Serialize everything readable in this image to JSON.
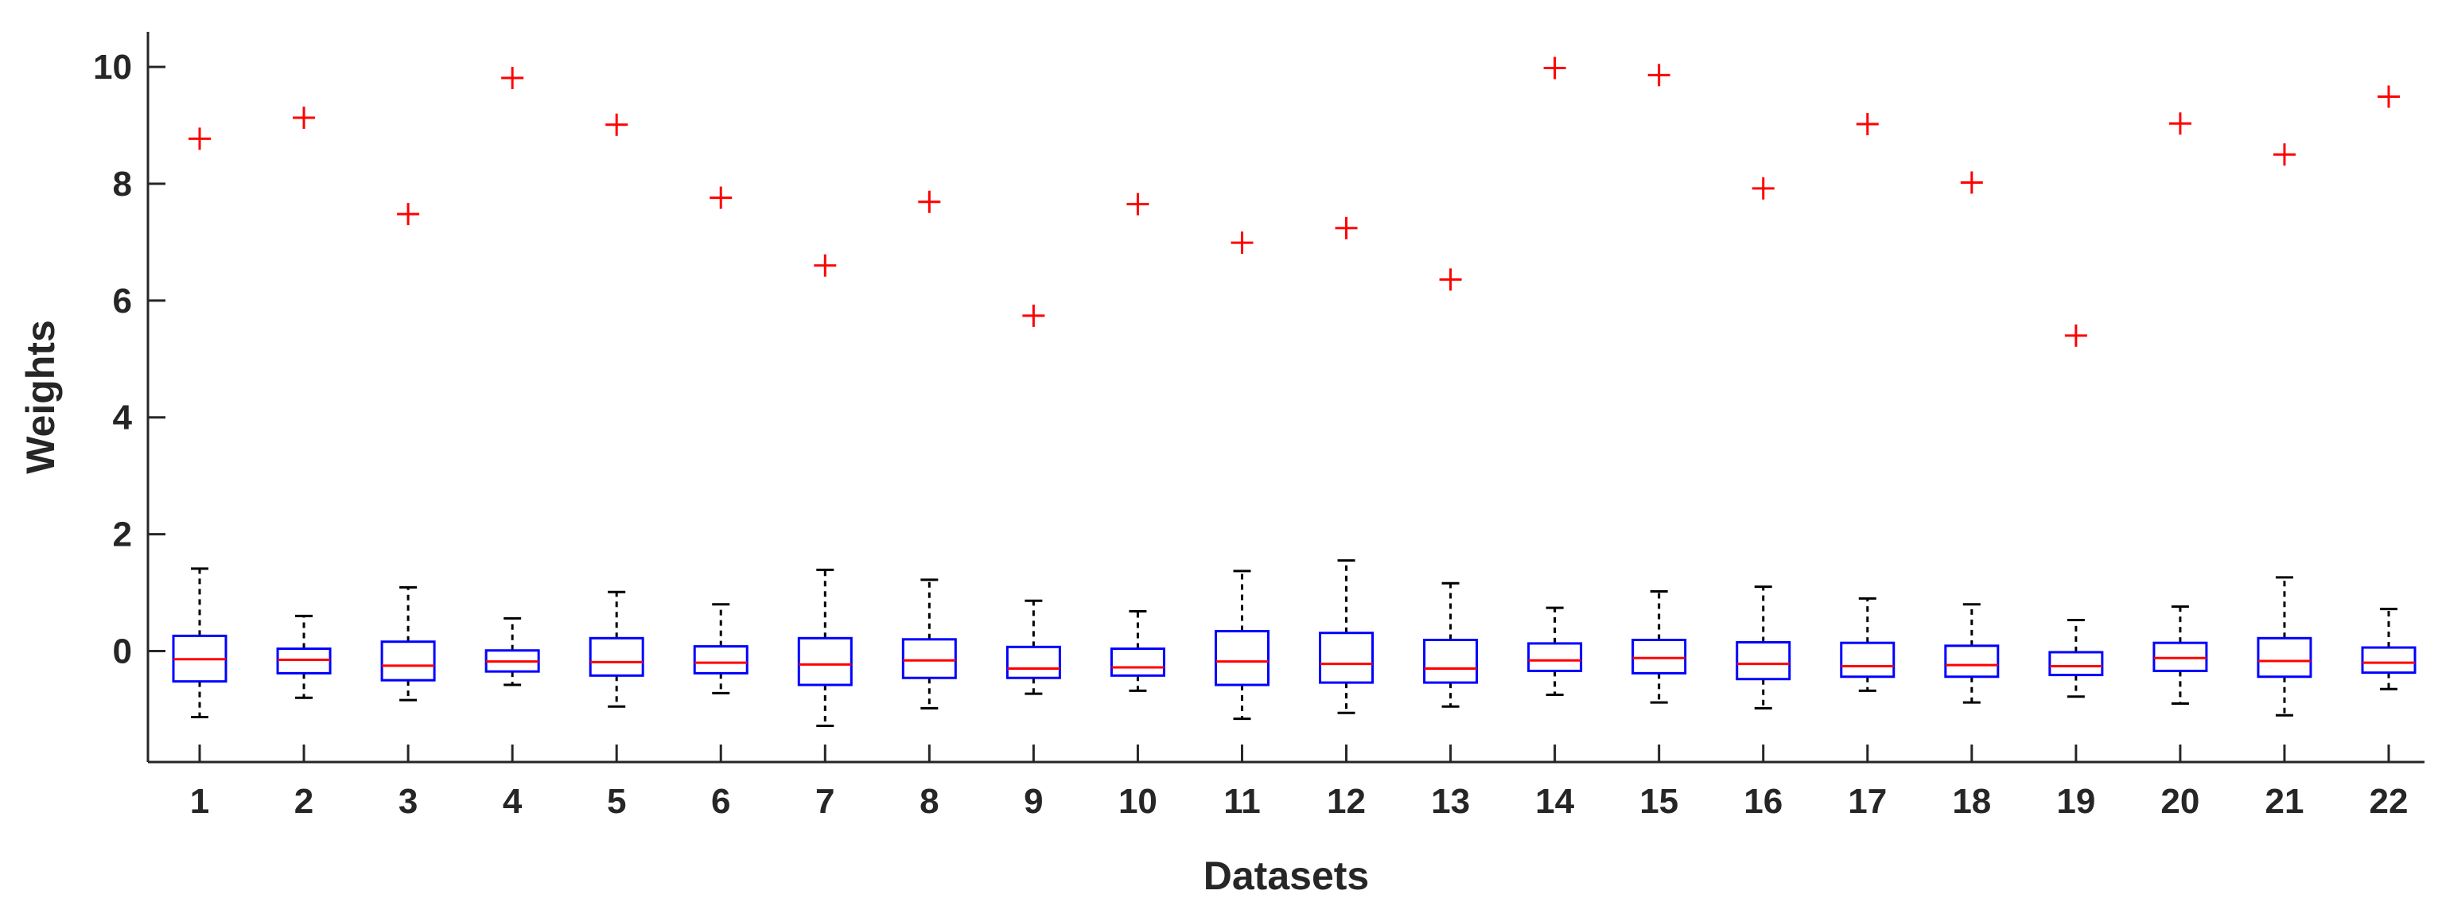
{
  "chart_data": {
    "type": "boxplot",
    "title": "",
    "xlabel": "Datasets",
    "ylabel": "Weights",
    "ylim": [
      -1.9,
      10.6
    ],
    "yticks": [
      0,
      2,
      4,
      6,
      8,
      10
    ],
    "categories": [
      "1",
      "2",
      "3",
      "4",
      "5",
      "6",
      "7",
      "8",
      "9",
      "10",
      "11",
      "12",
      "13",
      "14",
      "15",
      "16",
      "17",
      "18",
      "19",
      "20",
      "21",
      "22"
    ],
    "grid": false,
    "colors": {
      "box": "#0000ff",
      "median": "#ff0000",
      "whisker": "#000000",
      "outlier": "#ff0000",
      "axis": "#262626"
    },
    "boxes": [
      {
        "whisker_low": -1.13,
        "q1": -0.52,
        "median": -0.14,
        "q3": 0.26,
        "whisker_high": 1.41,
        "outliers": [
          8.77
        ]
      },
      {
        "whisker_low": -0.8,
        "q1": -0.38,
        "median": -0.15,
        "q3": 0.04,
        "whisker_high": 0.6,
        "outliers": [
          9.13
        ]
      },
      {
        "whisker_low": -0.84,
        "q1": -0.5,
        "median": -0.25,
        "q3": 0.16,
        "whisker_high": 1.09,
        "outliers": [
          7.48
        ]
      },
      {
        "whisker_low": -0.58,
        "q1": -0.35,
        "median": -0.18,
        "q3": 0.01,
        "whisker_high": 0.56,
        "outliers": [
          9.81
        ]
      },
      {
        "whisker_low": -0.95,
        "q1": -0.42,
        "median": -0.19,
        "q3": 0.22,
        "whisker_high": 1.01,
        "outliers": [
          9.01
        ]
      },
      {
        "whisker_low": -0.72,
        "q1": -0.38,
        "median": -0.2,
        "q3": 0.08,
        "whisker_high": 0.8,
        "outliers": [
          7.76
        ]
      },
      {
        "whisker_low": -1.28,
        "q1": -0.58,
        "median": -0.23,
        "q3": 0.22,
        "whisker_high": 1.39,
        "outliers": [
          6.6
        ]
      },
      {
        "whisker_low": -0.98,
        "q1": -0.46,
        "median": -0.16,
        "q3": 0.2,
        "whisker_high": 1.22,
        "outliers": [
          7.69
        ]
      },
      {
        "whisker_low": -0.73,
        "q1": -0.46,
        "median": -0.3,
        "q3": 0.07,
        "whisker_high": 0.86,
        "outliers": [
          5.74
        ]
      },
      {
        "whisker_low": -0.68,
        "q1": -0.42,
        "median": -0.28,
        "q3": 0.04,
        "whisker_high": 0.68,
        "outliers": [
          7.65
        ]
      },
      {
        "whisker_low": -1.16,
        "q1": -0.58,
        "median": -0.18,
        "q3": 0.34,
        "whisker_high": 1.37,
        "outliers": [
          6.99
        ]
      },
      {
        "whisker_low": -1.06,
        "q1": -0.54,
        "median": -0.22,
        "q3": 0.31,
        "whisker_high": 1.55,
        "outliers": [
          7.24
        ]
      },
      {
        "whisker_low": -0.95,
        "q1": -0.54,
        "median": -0.3,
        "q3": 0.19,
        "whisker_high": 1.16,
        "outliers": [
          6.36
        ]
      },
      {
        "whisker_low": -0.75,
        "q1": -0.34,
        "median": -0.16,
        "q3": 0.13,
        "whisker_high": 0.74,
        "outliers": [
          9.98
        ]
      },
      {
        "whisker_low": -0.88,
        "q1": -0.38,
        "median": -0.12,
        "q3": 0.19,
        "whisker_high": 1.02,
        "outliers": [
          9.86
        ]
      },
      {
        "whisker_low": -0.98,
        "q1": -0.48,
        "median": -0.22,
        "q3": 0.15,
        "whisker_high": 1.1,
        "outliers": [
          7.92
        ]
      },
      {
        "whisker_low": -0.68,
        "q1": -0.44,
        "median": -0.26,
        "q3": 0.14,
        "whisker_high": 0.9,
        "outliers": [
          9.02
        ]
      },
      {
        "whisker_low": -0.88,
        "q1": -0.44,
        "median": -0.24,
        "q3": 0.09,
        "whisker_high": 0.8,
        "outliers": [
          8.02
        ]
      },
      {
        "whisker_low": -0.78,
        "q1": -0.41,
        "median": -0.26,
        "q3": -0.02,
        "whisker_high": 0.53,
        "outliers": [
          5.4
        ]
      },
      {
        "whisker_low": -0.9,
        "q1": -0.34,
        "median": -0.12,
        "q3": 0.14,
        "whisker_high": 0.76,
        "outliers": [
          9.03
        ]
      },
      {
        "whisker_low": -1.1,
        "q1": -0.44,
        "median": -0.17,
        "q3": 0.22,
        "whisker_high": 1.26,
        "outliers": [
          8.5
        ]
      },
      {
        "whisker_low": -0.65,
        "q1": -0.37,
        "median": -0.2,
        "q3": 0.06,
        "whisker_high": 0.72,
        "outliers": [
          9.49
        ]
      }
    ]
  }
}
